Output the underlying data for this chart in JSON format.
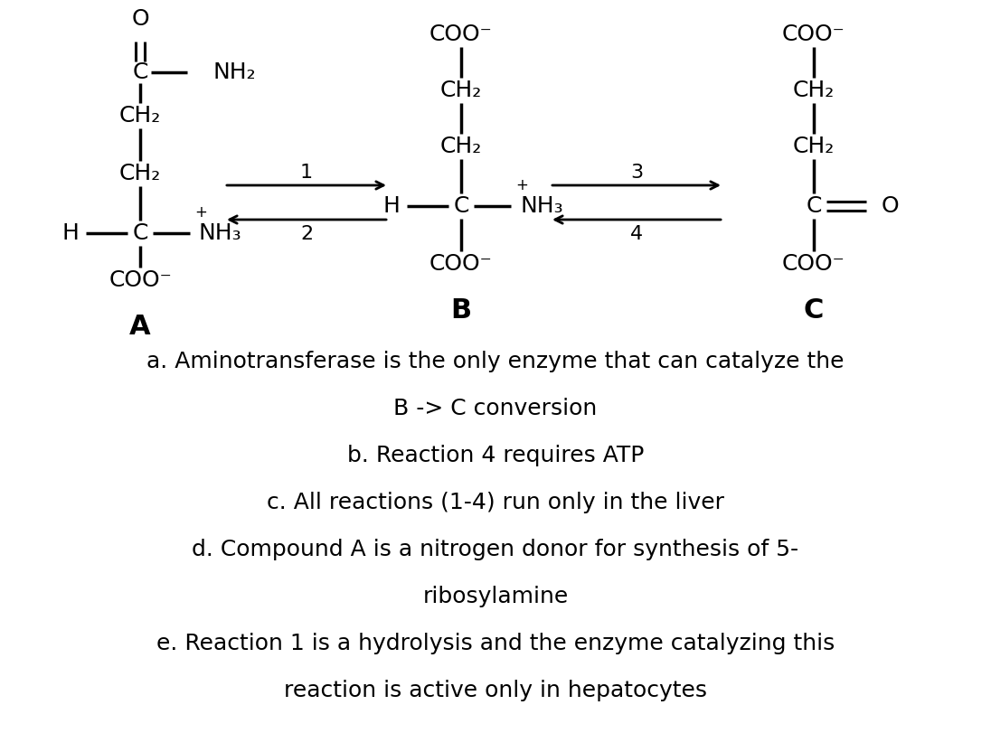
{
  "bg_color": "#ffffff",
  "text_color": "#000000",
  "options": [
    "a. Aminotransferase is the only enzyme that can catalyze the\nB -> C conversion",
    "b. Reaction 4 requires ATP",
    "c. All reactions (1-4) run only in the liver",
    "d. Compound A is a nitrogen donor for synthesis of 5-\nribosylamine",
    "e. Reaction 1 is a hydrolysis and the enzyme catalyzing this\nreaction is active only in hepatocytes"
  ],
  "label_A": "A",
  "label_B": "B",
  "label_C": "C",
  "reaction_1": "1",
  "reaction_2": "2",
  "reaction_3": "3",
  "reaction_4": "4",
  "fig_width": 10.96,
  "fig_height": 8.32,
  "dpi": 100
}
